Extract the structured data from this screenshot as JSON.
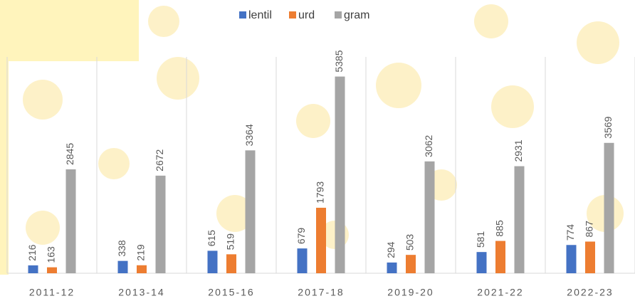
{
  "chart_data": {
    "type": "bar",
    "categories": [
      "2011-12",
      "2013-14",
      "2015-16",
      "2017-18",
      "2019-20",
      "2021-22",
      "2022-23"
    ],
    "series": [
      {
        "name": "lentil",
        "color": "#4472c4",
        "values": [
          216,
          338,
          615,
          679,
          294,
          581,
          774
        ]
      },
      {
        "name": "urd",
        "color": "#ed7d31",
        "values": [
          163,
          219,
          519,
          1793,
          503,
          885,
          867
        ]
      },
      {
        "name": "gram",
        "color": "#a5a5a5",
        "values": [
          2845,
          2672,
          3364,
          5385,
          3062,
          2931,
          3569
        ]
      }
    ],
    "ylim": [
      0,
      6000
    ]
  }
}
